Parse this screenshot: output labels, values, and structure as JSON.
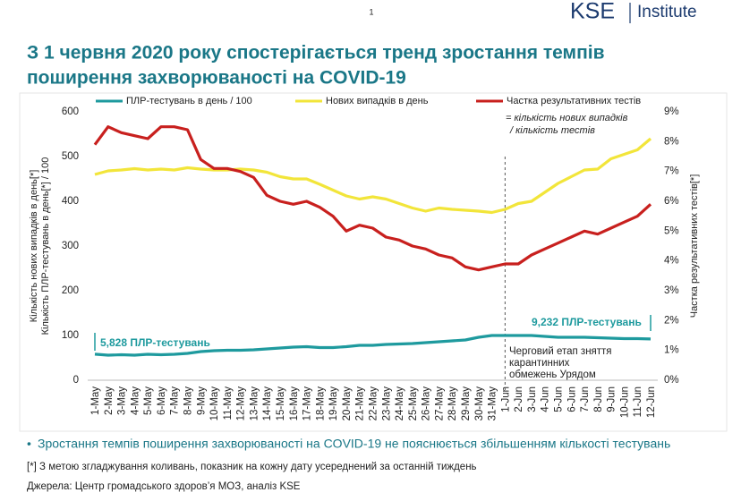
{
  "header": {
    "page": "1",
    "brand": "KSE",
    "brand_sub": "Institute",
    "title_lines": [
      "З 1 червня 2020 року спостерігається тренд зростання темпів",
      "поширення захворюваності на COVID-19"
    ]
  },
  "chart_data": {
    "type": "line",
    "y_label_lines": [
      "Кількість нових випадків в день[*]",
      "Кількість ПЛР-тестувань в день[*] / 100"
    ],
    "y2_label": "Частка результативних тестів[*]",
    "categories": [
      "1-May",
      "2-May",
      "3-May",
      "4-May",
      "5-May",
      "6-May",
      "7-May",
      "8-May",
      "9-May",
      "10-May",
      "11-May",
      "12-May",
      "13-May",
      "14-May",
      "15-May",
      "16-May",
      "17-May",
      "18-May",
      "19-May",
      "20-May",
      "21-May",
      "22-May",
      "23-May",
      "24-May",
      "25-May",
      "26-May",
      "27-May",
      "28-May",
      "29-May",
      "30-May",
      "31-May",
      "1-Jun",
      "2-Jun",
      "3-Jun",
      "4-Jun",
      "5-Jun",
      "6-Jun",
      "7-Jun",
      "8-Jun",
      "9-Jun",
      "10-Jun",
      "11-Jun",
      "12-Jun"
    ],
    "series": [
      {
        "name": "ПЛР-тестувань в день / 100",
        "color": "#1e9a9e",
        "values": [
          58.28,
          56,
          57,
          56,
          58,
          57,
          58,
          60,
          64,
          66,
          67,
          67,
          68,
          70,
          72,
          74,
          75,
          73,
          73,
          75,
          78,
          78,
          80,
          81,
          82,
          84,
          86,
          88,
          90,
          96,
          100,
          100,
          100,
          100,
          98,
          96,
          96,
          96,
          95,
          94,
          93,
          93,
          92.32
        ]
      },
      {
        "name": "Нових випадків в день",
        "color": "#f2e53a",
        "values": [
          460,
          468,
          470,
          473,
          470,
          472,
          470,
          475,
          472,
          470,
          470,
          472,
          470,
          465,
          455,
          450,
          450,
          438,
          425,
          412,
          405,
          410,
          405,
          395,
          385,
          378,
          385,
          382,
          380,
          378,
          375,
          382,
          395,
          400,
          420,
          440,
          455,
          470,
          472,
          495,
          505,
          515,
          540
        ]
      },
      {
        "name": "Частка результативних тестів",
        "color": "#c8201e",
        "axis": "y2",
        "values": [
          7.9,
          8.5,
          8.3,
          8.2,
          8.1,
          8.5,
          8.5,
          8.4,
          7.4,
          7.1,
          7.1,
          7.0,
          6.8,
          6.2,
          6.0,
          5.9,
          6.0,
          5.8,
          5.5,
          5.0,
          5.2,
          5.1,
          4.8,
          4.7,
          4.5,
          4.4,
          4.2,
          4.1,
          3.8,
          3.7,
          3.8,
          3.9,
          3.9,
          4.2,
          4.4,
          4.6,
          4.8,
          5.0,
          4.9,
          5.1,
          5.3,
          5.5,
          5.9
        ]
      }
    ],
    "ylim": [
      0,
      600
    ],
    "yticks": [
      0,
      100,
      200,
      300,
      400,
      500,
      600
    ],
    "y2lim": [
      0,
      9
    ],
    "y2ticks": [
      {
        "value": 0,
        "label": "0%"
      },
      {
        "value": 1,
        "label": "1%"
      },
      {
        "value": 2,
        "label": "2%"
      },
      {
        "value": 3,
        "label": "3%"
      },
      {
        "value": 4,
        "label": "4%"
      },
      {
        "value": 5,
        "label": "5%"
      },
      {
        "value": 6,
        "label": "6%"
      },
      {
        "value": 7,
        "label": "7%"
      },
      {
        "value": 8,
        "label": "8%"
      },
      {
        "value": 9,
        "label": "9%"
      }
    ],
    "annotations": {
      "ratio_note": [
        "= кількість нових випадків",
        "/ кількість тестів"
      ],
      "start_tests": "5,828 ПЛР-тестувань",
      "end_tests": "9,232 ПЛР-тестувань",
      "event": [
        "Черговий етап зняття",
        "карантинних",
        "обмежень Урядом"
      ]
    }
  },
  "footer": {
    "bullet": "Зростання темпів поширення захворюваності на COVID-19 не пояснюється збільшенням кількості тестувань",
    "note": "[*] З метою згладжування коливань, показник на кожну дату усереднений за останній тиждень",
    "source": "Джерела: Центр громадського здоров’я МОЗ, аналіз KSE"
  }
}
